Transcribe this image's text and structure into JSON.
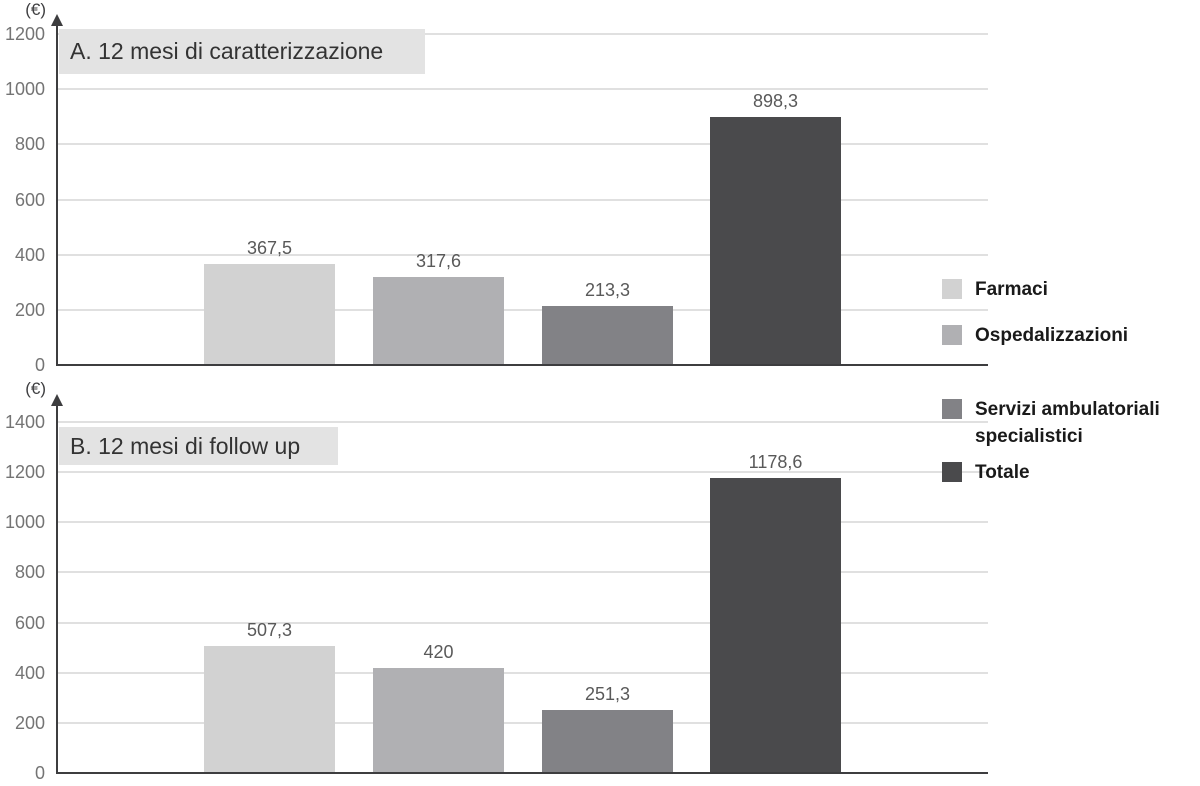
{
  "chart_data": [
    {
      "type": "bar",
      "panel_label": "A",
      "title": "A. 12 mesi di caratterizzazione",
      "ylabel": "(€)",
      "categories": [
        "Farmaci",
        "Ospedalizzazioni",
        "Servizi ambulatoriali specialistici",
        "Totale"
      ],
      "values": [
        367.5,
        317.6,
        213.3,
        898.3
      ],
      "value_labels": [
        "367,5",
        "317,6",
        "213,3",
        "898,3"
      ],
      "ylim": [
        0,
        1200
      ],
      "ytick_step": 200,
      "grid": true,
      "legend_position": "right",
      "bar_colors": [
        "#d2d2d2",
        "#b0b0b3",
        "#828286",
        "#4a4a4c"
      ]
    },
    {
      "type": "bar",
      "panel_label": "B",
      "title": "B. 12 mesi di follow up",
      "ylabel": "(€)",
      "categories": [
        "Farmaci",
        "Ospedalizzazioni",
        "Servizi ambulatoriali specialistici",
        "Totale"
      ],
      "values": [
        507.3,
        420,
        251.3,
        1178.6
      ],
      "value_labels": [
        "507,3",
        "420",
        "251,3",
        "1178,6"
      ],
      "ylim": [
        0,
        1400
      ],
      "ytick_step": 200,
      "grid": true,
      "legend_position": "right",
      "bar_colors": [
        "#d2d2d2",
        "#b0b0b3",
        "#828286",
        "#4a4a4c"
      ]
    }
  ],
  "legend": {
    "items": [
      {
        "label": "Farmaci",
        "color": "#d2d2d2"
      },
      {
        "label": "Ospedalizzazioni",
        "color": "#b0b0b3"
      },
      {
        "label": "Servizi ambulatoriali specialistici",
        "color": "#828286"
      },
      {
        "label": "Totale",
        "color": "#4a4a4c"
      }
    ]
  },
  "colors": {
    "background": "#ffffff",
    "axis": "#3d3d3f",
    "gridline": "#e0e0e0",
    "tick_label": "#747474",
    "value_label": "#595959",
    "title_text": "#333333",
    "title_background": "#e3e3e3"
  }
}
